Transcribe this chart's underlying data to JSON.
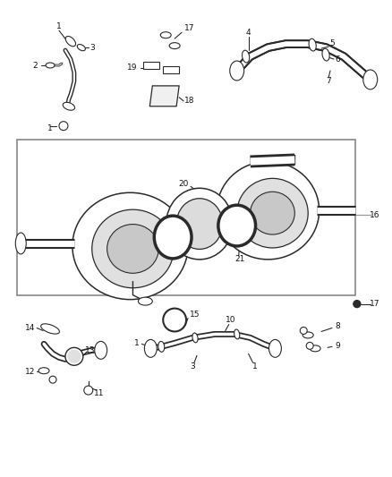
{
  "bg_color": "#ffffff",
  "fig_width": 4.38,
  "fig_height": 5.33,
  "dpi": 100,
  "line_color": "#2a2a2a",
  "label_color": "#111111",
  "label_fontsize": 6.5
}
